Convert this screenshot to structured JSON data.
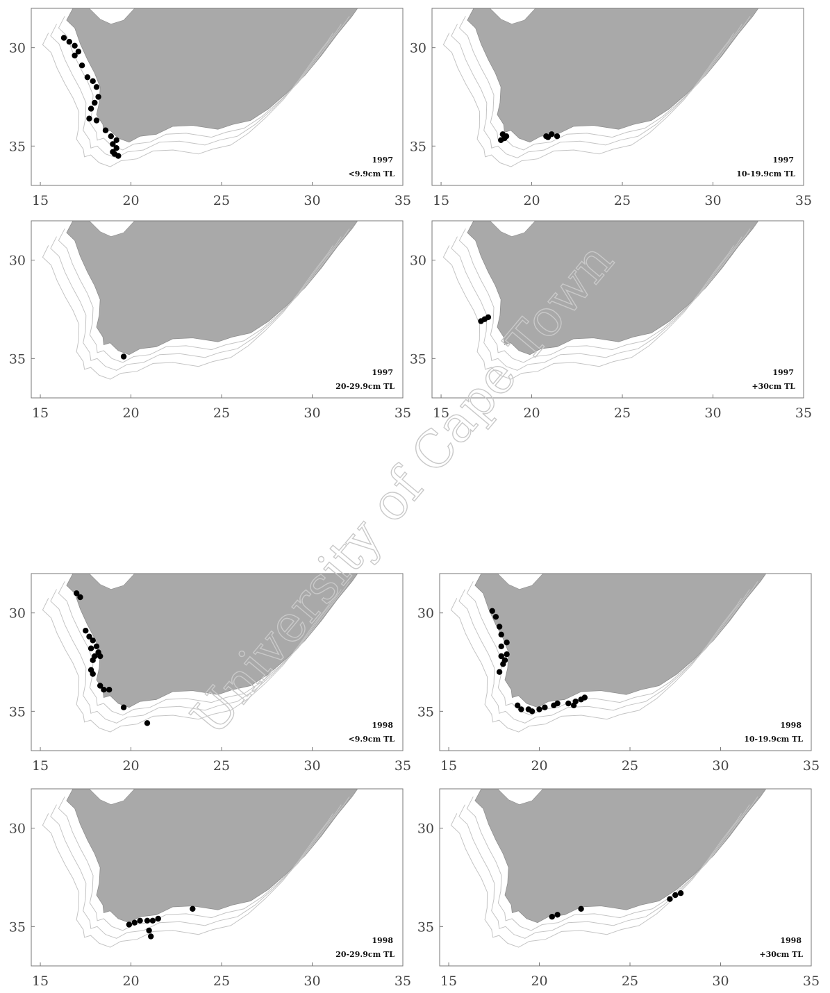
{
  "watermark": "University of Cape Town",
  "land_color": "#a9a9a9",
  "contour_color": "#c4c4c4",
  "point_color": "#000000",
  "axis": {
    "x_ticks": [
      "15",
      "20",
      "25",
      "30",
      "35"
    ],
    "y_ticks": [
      "30",
      "35"
    ],
    "x_range": [
      14.5,
      35
    ],
    "y_range": [
      28,
      37
    ]
  },
  "panels": [
    {
      "id": "p1997-a",
      "year": "1997",
      "size_class": "<9.9cm TL",
      "points": [
        [
          16.3,
          29.5
        ],
        [
          16.6,
          29.7
        ],
        [
          16.9,
          29.9
        ],
        [
          17.1,
          30.2
        ],
        [
          16.9,
          30.4
        ],
        [
          17.3,
          30.9
        ],
        [
          17.6,
          31.5
        ],
        [
          17.9,
          31.7
        ],
        [
          18.1,
          32.0
        ],
        [
          18.2,
          32.5
        ],
        [
          18.0,
          32.8
        ],
        [
          17.8,
          33.1
        ],
        [
          17.7,
          33.6
        ],
        [
          18.1,
          33.7
        ],
        [
          18.6,
          34.2
        ],
        [
          18.9,
          34.5
        ],
        [
          19.2,
          34.7
        ],
        [
          19.0,
          34.9
        ],
        [
          19.2,
          35.1
        ],
        [
          19.0,
          35.3
        ],
        [
          19.3,
          35.5
        ],
        [
          19.1,
          35.4
        ]
      ]
    },
    {
      "id": "p1997-b",
      "year": "1997",
      "size_class": "10-19.9cm TL",
      "points": [
        [
          18.4,
          34.4
        ],
        [
          18.5,
          34.6
        ],
        [
          18.3,
          34.7
        ],
        [
          18.6,
          34.5
        ],
        [
          20.8,
          34.5
        ],
        [
          21.1,
          34.4
        ],
        [
          21.4,
          34.5
        ],
        [
          20.9,
          34.55
        ]
      ]
    },
    {
      "id": "p1997-c",
      "year": "1997",
      "size_class": "20-29.9cm TL",
      "points": [
        [
          19.6,
          34.9
        ]
      ]
    },
    {
      "id": "p1997-d",
      "year": "1997",
      "size_class": "+30cm TL",
      "points": [
        [
          17.2,
          33.1
        ],
        [
          17.4,
          33.0
        ],
        [
          17.6,
          32.9
        ]
      ]
    },
    {
      "id": "p1998-a",
      "year": "1998",
      "size_class": "<9.9cm TL",
      "points": [
        [
          17.0,
          29.0
        ],
        [
          17.2,
          29.2
        ],
        [
          17.5,
          30.9
        ],
        [
          17.7,
          31.2
        ],
        [
          17.9,
          31.4
        ],
        [
          18.1,
          31.7
        ],
        [
          17.8,
          31.8
        ],
        [
          18.2,
          32.0
        ],
        [
          18.0,
          32.2
        ],
        [
          18.3,
          32.2
        ],
        [
          17.9,
          32.4
        ],
        [
          17.8,
          32.9
        ],
        [
          17.9,
          33.1
        ],
        [
          18.3,
          33.7
        ],
        [
          18.5,
          33.9
        ],
        [
          18.8,
          33.9
        ],
        [
          19.6,
          34.8
        ],
        [
          20.9,
          35.6
        ]
      ]
    },
    {
      "id": "p1998-b",
      "year": "1998",
      "size_class": "10-19.9cm TL",
      "points": [
        [
          17.4,
          29.9
        ],
        [
          17.6,
          30.2
        ],
        [
          17.8,
          30.7
        ],
        [
          17.9,
          31.1
        ],
        [
          18.2,
          31.5
        ],
        [
          17.9,
          31.7
        ],
        [
          18.2,
          32.1
        ],
        [
          17.9,
          32.2
        ],
        [
          18.1,
          32.4
        ],
        [
          18.0,
          32.6
        ],
        [
          17.8,
          33.0
        ],
        [
          18.8,
          34.7
        ],
        [
          19.0,
          34.9
        ],
        [
          19.4,
          34.9
        ],
        [
          19.6,
          35.0
        ],
        [
          20.0,
          34.9
        ],
        [
          20.3,
          34.8
        ],
        [
          20.8,
          34.7
        ],
        [
          21.0,
          34.6
        ],
        [
          21.6,
          34.6
        ],
        [
          22.0,
          34.5
        ],
        [
          22.3,
          34.4
        ],
        [
          22.5,
          34.3
        ],
        [
          21.9,
          34.7
        ]
      ]
    },
    {
      "id": "p1998-c",
      "year": "1998",
      "size_class": "20-29.9cm TL",
      "points": [
        [
          19.9,
          34.9
        ],
        [
          20.2,
          34.8
        ],
        [
          20.5,
          34.7
        ],
        [
          20.9,
          34.7
        ],
        [
          21.2,
          34.7
        ],
        [
          21.5,
          34.6
        ],
        [
          21.0,
          35.2
        ],
        [
          21.1,
          35.5
        ],
        [
          23.4,
          34.1
        ]
      ]
    },
    {
      "id": "p1998-d",
      "year": "1998",
      "size_class": "+30cm TL",
      "points": [
        [
          20.7,
          34.5
        ],
        [
          21.0,
          34.4
        ],
        [
          22.3,
          34.1
        ],
        [
          27.2,
          33.6
        ],
        [
          27.5,
          33.4
        ],
        [
          27.8,
          33.3
        ]
      ]
    }
  ]
}
